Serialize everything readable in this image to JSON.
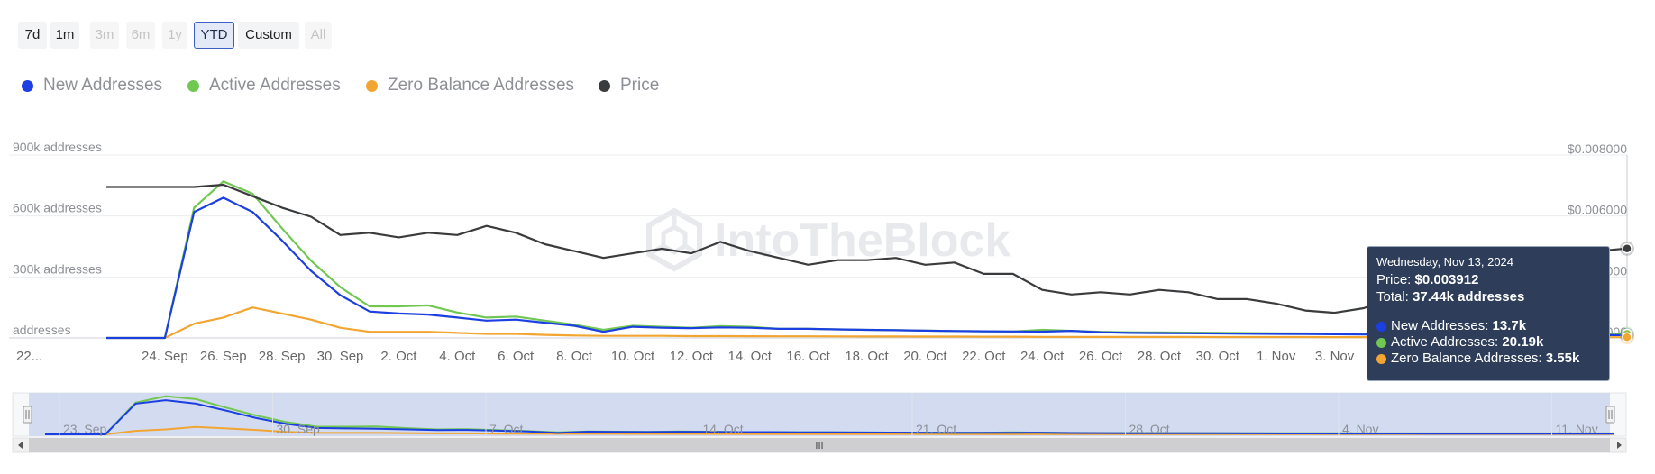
{
  "range_selector": {
    "buttons": [
      {
        "label": "7d",
        "state": "normal"
      },
      {
        "label": "1m",
        "state": "normal"
      },
      {
        "label": "3m",
        "state": "disabled"
      },
      {
        "label": "6m",
        "state": "disabled"
      },
      {
        "label": "1y",
        "state": "disabled"
      },
      {
        "label": "YTD",
        "state": "active"
      },
      {
        "label": "Custom",
        "state": "normal"
      },
      {
        "label": "All",
        "state": "disabled"
      }
    ]
  },
  "legend": [
    {
      "label": "New Addresses",
      "color": "#1b3fe0"
    },
    {
      "label": "Active Addresses",
      "color": "#70c752"
    },
    {
      "label": "Zero Balance Addresses",
      "color": "#f2a531"
    },
    {
      "label": "Price",
      "color": "#3a3b3d"
    }
  ],
  "watermark": "IntoTheBlock",
  "tooltip": {
    "date": "Wednesday, Nov 13, 2024",
    "price_label": "Price:",
    "price_value": "$0.003912",
    "total_label": "Total:",
    "total_value": "37.44k addresses",
    "series": [
      {
        "label": "New Addresses:",
        "value": "13.7k",
        "color": "#1b3fe0"
      },
      {
        "label": "Active Addresses:",
        "value": "20.19k",
        "color": "#70c752"
      },
      {
        "label": "Zero Balance Addresses:",
        "value": "3.55k",
        "color": "#f2a531"
      }
    ]
  },
  "chart_data": {
    "type": "line",
    "x": [
      "2024-09-22",
      "2024-09-23",
      "2024-09-24",
      "2024-09-25",
      "2024-09-26",
      "2024-09-27",
      "2024-09-28",
      "2024-09-29",
      "2024-09-30",
      "2024-10-01",
      "2024-10-02",
      "2024-10-03",
      "2024-10-04",
      "2024-10-05",
      "2024-10-06",
      "2024-10-07",
      "2024-10-08",
      "2024-10-09",
      "2024-10-10",
      "2024-10-11",
      "2024-10-12",
      "2024-10-13",
      "2024-10-14",
      "2024-10-15",
      "2024-10-16",
      "2024-10-17",
      "2024-10-18",
      "2024-10-19",
      "2024-10-20",
      "2024-10-21",
      "2024-10-22",
      "2024-10-23",
      "2024-10-24",
      "2024-10-25",
      "2024-10-26",
      "2024-10-27",
      "2024-10-28",
      "2024-10-29",
      "2024-10-30",
      "2024-10-31",
      "2024-11-01",
      "2024-11-02",
      "2024-11-03",
      "2024-11-04",
      "2024-11-05",
      "2024-11-06",
      "2024-11-07",
      "2024-11-08",
      "2024-11-09",
      "2024-11-10",
      "2024-11-11",
      "2024-11-12",
      "2024-11-13"
    ],
    "x_tick_labels": [
      "22...",
      "24. Sep",
      "26. Sep",
      "28. Sep",
      "30. Sep",
      "2. Oct",
      "4. Oct",
      "6. Oct",
      "8. Oct",
      "10. Oct",
      "12. Oct",
      "14. Oct",
      "16. Oct",
      "18. Oct",
      "20. Oct",
      "22. Oct",
      "24. Oct",
      "26. Oct",
      "28. Oct",
      "30. Oct",
      "1. Nov",
      "3. Nov",
      "5..."
    ],
    "y_left_ticks": [
      "addresses",
      "300k addresses",
      "600k addresses",
      "900k addresses"
    ],
    "y_left_range": [
      0,
      900000
    ],
    "y_right_ticks": [
      "$0.008000",
      "$0.006000",
      "$0.004000",
      "$0.002000"
    ],
    "y_right_range": [
      0,
      0.008
    ],
    "series": [
      {
        "name": "New Addresses",
        "axis": "left",
        "color": "#1b3fe0",
        "values": [
          0,
          0,
          0,
          620000,
          690000,
          620000,
          480000,
          330000,
          210000,
          130000,
          120000,
          115000,
          100000,
          85000,
          90000,
          75000,
          60000,
          30000,
          55000,
          50000,
          48000,
          52000,
          50000,
          45000,
          45000,
          42000,
          40000,
          38000,
          36000,
          34000,
          33000,
          32000,
          31000,
          35000,
          28000,
          25000,
          24000,
          23000,
          22000,
          21000,
          20000,
          19000,
          18000,
          17000,
          16000,
          15500,
          15000,
          14800,
          14500,
          14200,
          14000,
          13800,
          13700
        ]
      },
      {
        "name": "Active Addresses",
        "axis": "left",
        "color": "#70c752",
        "values": [
          0,
          0,
          0,
          640000,
          770000,
          710000,
          540000,
          380000,
          250000,
          155000,
          155000,
          160000,
          125000,
          100000,
          105000,
          85000,
          65000,
          40000,
          60000,
          55000,
          50000,
          58000,
          55000,
          45000,
          45000,
          42000,
          40000,
          38000,
          36000,
          34000,
          33000,
          32000,
          40000,
          35000,
          30000,
          28000,
          27000,
          26000,
          25000,
          24000,
          23000,
          22000,
          21500,
          21000,
          20800,
          20600,
          20500,
          20400,
          20300,
          20250,
          20220,
          20200,
          20190
        ]
      },
      {
        "name": "Zero Balance Addresses",
        "axis": "left",
        "color": "#f2a531",
        "values": [
          0,
          0,
          0,
          70000,
          100000,
          150000,
          120000,
          90000,
          50000,
          30000,
          30000,
          30000,
          25000,
          20000,
          20000,
          15000,
          12000,
          10000,
          10000,
          10000,
          9000,
          9000,
          8500,
          8000,
          8000,
          7500,
          7000,
          7000,
          6500,
          6500,
          6000,
          6000,
          5500,
          5500,
          5000,
          5000,
          5000,
          4800,
          4600,
          4500,
          4400,
          4300,
          4200,
          4100,
          4000,
          3900,
          3800,
          3750,
          3700,
          3650,
          3600,
          3580,
          3550
        ]
      },
      {
        "name": "Price",
        "axis": "right",
        "color": "#3a3b3d",
        "values": [
          0.0066,
          0.0066,
          0.0066,
          0.0066,
          0.0067,
          0.0062,
          0.0057,
          0.0053,
          0.0045,
          0.0046,
          0.0044,
          0.0046,
          0.0045,
          0.0049,
          0.0046,
          0.0041,
          0.0038,
          0.0035,
          0.0037,
          0.0039,
          0.0037,
          0.0042,
          0.0038,
          0.0035,
          0.0032,
          0.0034,
          0.0034,
          0.0035,
          0.0032,
          0.0033,
          0.0028,
          0.0028,
          0.0021,
          0.0019,
          0.002,
          0.0019,
          0.0021,
          0.002,
          0.0017,
          0.0017,
          0.0015,
          0.0012,
          0.0011,
          0.0013,
          0.0018,
          0.0025,
          0.0028,
          0.0031,
          0.0034,
          0.0036,
          0.0037,
          0.0038,
          0.003912
        ]
      }
    ],
    "navigator": {
      "tick_labels": [
        "23. Sep",
        "30. Sep",
        "7. Oct",
        "14. Oct",
        "21. Oct",
        "28. Oct",
        "4. Nov",
        "11. Nov"
      ],
      "scrollbar_glyph": "III"
    },
    "grid": true
  }
}
